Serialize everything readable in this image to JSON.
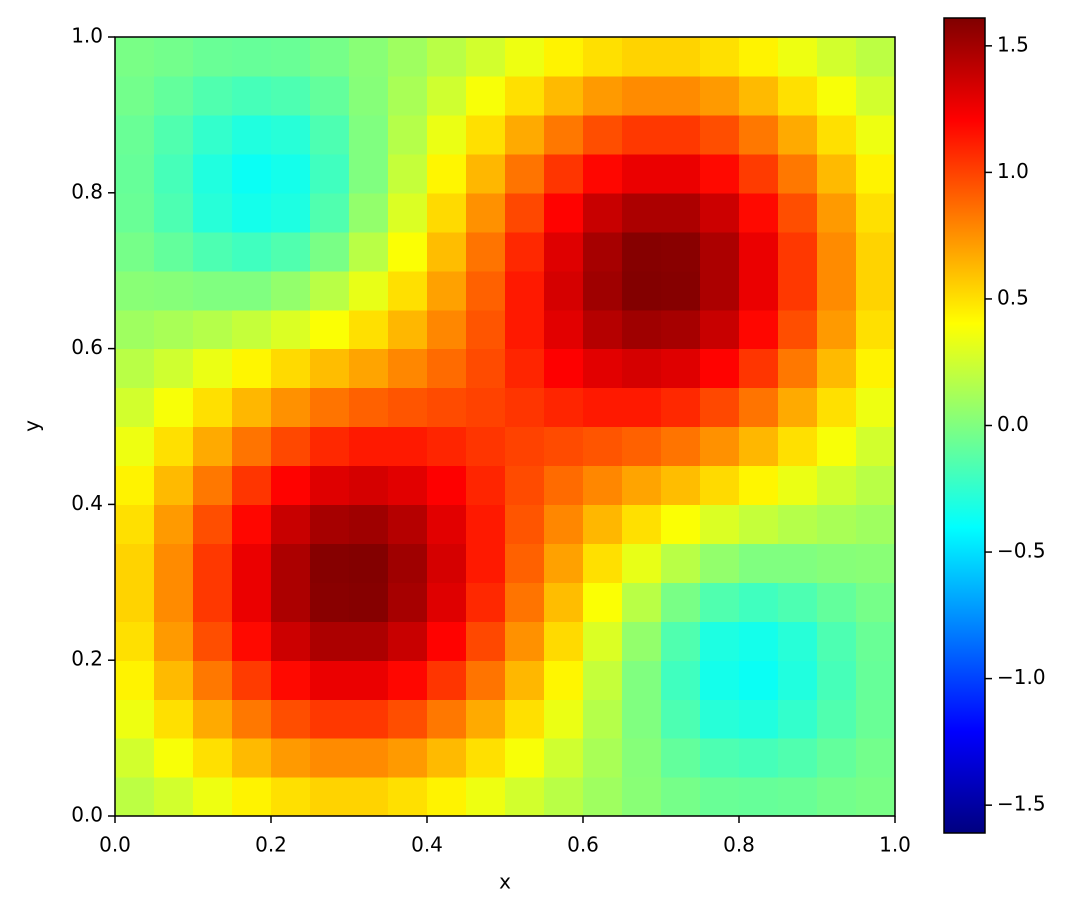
{
  "chart_data": {
    "type": "heatmap",
    "xlabel": "x",
    "ylabel": "y",
    "x": [
      0.025,
      0.075,
      0.125,
      0.175,
      0.225,
      0.275,
      0.325,
      0.375,
      0.425,
      0.475,
      0.525,
      0.575,
      0.625,
      0.675,
      0.725,
      0.775,
      0.825,
      0.875,
      0.925,
      0.975
    ],
    "y": [
      0.025,
      0.075,
      0.125,
      0.175,
      0.225,
      0.275,
      0.325,
      0.375,
      0.425,
      0.475,
      0.525,
      0.575,
      0.625,
      0.675,
      0.725,
      0.775,
      0.825,
      0.875,
      0.925,
      0.975
    ],
    "z": [
      [
        0.19,
        0.26,
        0.35,
        0.44,
        0.5,
        0.54,
        0.54,
        0.5,
        0.44,
        0.35,
        0.26,
        0.18,
        0.1,
        0.03,
        -0.03,
        -0.07,
        -0.08,
        -0.07,
        -0.04,
        -0.02
      ],
      [
        0.26,
        0.38,
        0.5,
        0.62,
        0.72,
        0.77,
        0.77,
        0.72,
        0.62,
        0.5,
        0.38,
        0.25,
        0.13,
        0.02,
        -0.09,
        -0.16,
        -0.18,
        -0.15,
        -0.09,
        -0.04
      ],
      [
        0.35,
        0.5,
        0.67,
        0.83,
        0.96,
        1.03,
        1.03,
        0.96,
        0.83,
        0.67,
        0.5,
        0.34,
        0.17,
        0,
        -0.16,
        -0.28,
        -0.3,
        -0.24,
        -0.15,
        -0.07
      ],
      [
        0.44,
        0.62,
        0.83,
        1.02,
        1.18,
        1.27,
        1.27,
        1.19,
        1.04,
        0.84,
        0.63,
        0.43,
        0.22,
        0,
        -0.2,
        -0.34,
        -0.37,
        -0.3,
        -0.18,
        -0.08
      ],
      [
        0.5,
        0.72,
        0.96,
        1.18,
        1.37,
        1.47,
        1.47,
        1.38,
        1.2,
        0.98,
        0.75,
        0.52,
        0.29,
        0.06,
        -0.15,
        -0.31,
        -0.34,
        -0.28,
        -0.16,
        -0.07
      ],
      [
        0.54,
        0.77,
        1.03,
        1.27,
        1.47,
        1.58,
        1.59,
        1.49,
        1.31,
        1.08,
        0.84,
        0.61,
        0.39,
        0.18,
        -0.02,
        -0.15,
        -0.2,
        -0.16,
        -0.09,
        -0.03
      ],
      [
        0.54,
        0.77,
        1.03,
        1.27,
        1.47,
        1.59,
        1.6,
        1.51,
        1.34,
        1.13,
        0.9,
        0.7,
        0.5,
        0.33,
        0.18,
        0.06,
        0,
        0,
        0.02,
        0.03
      ],
      [
        0.5,
        0.72,
        0.96,
        1.19,
        1.38,
        1.49,
        1.51,
        1.44,
        1.3,
        1.13,
        0.94,
        0.78,
        0.63,
        0.5,
        0.39,
        0.29,
        0.22,
        0.17,
        0.13,
        0.1
      ],
      [
        0.44,
        0.62,
        0.83,
        1.04,
        1.2,
        1.31,
        1.34,
        1.3,
        1.21,
        1.09,
        0.97,
        0.87,
        0.78,
        0.69,
        0.61,
        0.52,
        0.43,
        0.34,
        0.25,
        0.18
      ],
      [
        0.35,
        0.5,
        0.67,
        0.84,
        0.98,
        1.08,
        1.13,
        1.13,
        1.09,
        1.04,
        1.0,
        0.97,
        0.94,
        0.9,
        0.84,
        0.75,
        0.63,
        0.5,
        0.38,
        0.26
      ],
      [
        0.26,
        0.38,
        0.5,
        0.63,
        0.75,
        0.84,
        0.9,
        0.94,
        0.97,
        1.0,
        1.04,
        1.09,
        1.13,
        1.13,
        1.08,
        0.98,
        0.84,
        0.67,
        0.5,
        0.35
      ],
      [
        0.18,
        0.25,
        0.34,
        0.43,
        0.52,
        0.61,
        0.69,
        0.78,
        0.87,
        0.97,
        1.09,
        1.21,
        1.3,
        1.34,
        1.31,
        1.2,
        1.04,
        0.83,
        0.62,
        0.44
      ],
      [
        0.1,
        0.13,
        0.17,
        0.22,
        0.29,
        0.39,
        0.5,
        0.63,
        0.78,
        0.94,
        1.13,
        1.3,
        1.44,
        1.51,
        1.49,
        1.38,
        1.19,
        0.96,
        0.72,
        0.5
      ],
      [
        0.03,
        0.02,
        0,
        0,
        0.06,
        0.18,
        0.33,
        0.5,
        0.7,
        0.9,
        1.13,
        1.34,
        1.51,
        1.6,
        1.59,
        1.47,
        1.27,
        1.03,
        0.77,
        0.54
      ],
      [
        -0.03,
        -0.09,
        -0.16,
        -0.2,
        -0.15,
        -0.02,
        0.18,
        0.39,
        0.61,
        0.84,
        1.08,
        1.31,
        1.49,
        1.59,
        1.58,
        1.47,
        1.27,
        1.03,
        0.77,
        0.54
      ],
      [
        -0.07,
        -0.16,
        -0.28,
        -0.34,
        -0.31,
        -0.15,
        0.06,
        0.29,
        0.52,
        0.75,
        0.98,
        1.2,
        1.38,
        1.47,
        1.47,
        1.37,
        1.18,
        0.96,
        0.72,
        0.5
      ],
      [
        -0.08,
        -0.18,
        -0.3,
        -0.37,
        -0.34,
        -0.2,
        0,
        0.22,
        0.43,
        0.63,
        0.84,
        1.04,
        1.19,
        1.27,
        1.27,
        1.18,
        1.02,
        0.83,
        0.62,
        0.44
      ],
      [
        -0.07,
        -0.15,
        -0.24,
        -0.3,
        -0.28,
        -0.16,
        0,
        0.17,
        0.34,
        0.5,
        0.67,
        0.83,
        0.96,
        1.03,
        1.03,
        0.96,
        0.83,
        0.67,
        0.5,
        0.35
      ],
      [
        -0.04,
        -0.09,
        -0.15,
        -0.18,
        -0.16,
        -0.09,
        0.02,
        0.13,
        0.25,
        0.38,
        0.5,
        0.62,
        0.72,
        0.77,
        0.77,
        0.72,
        0.62,
        0.5,
        0.38,
        0.26
      ],
      [
        -0.02,
        -0.04,
        -0.07,
        -0.08,
        -0.07,
        -0.03,
        0.03,
        0.1,
        0.18,
        0.26,
        0.35,
        0.44,
        0.5,
        0.54,
        0.54,
        0.5,
        0.44,
        0.35,
        0.26,
        0.19
      ]
    ],
    "xlim": [
      0,
      1
    ],
    "ylim": [
      0,
      1
    ],
    "xticks": [
      {
        "value": 0,
        "label": "0.0"
      },
      0.2,
      0.4,
      0.6,
      0.8,
      {
        "value": 1,
        "label": "1.0"
      }
    ],
    "yticks": [
      {
        "value": 0,
        "label": "0.0"
      },
      0.2,
      0.4,
      0.6,
      0.8,
      {
        "value": 1,
        "label": "1.0"
      }
    ],
    "colormap": "jet",
    "clim": [
      -1.61,
      1.61
    ],
    "cticks": [
      {
        "value": -1.5,
        "label": "−1.5"
      },
      {
        "value": -1,
        "label": "−1.0"
      },
      {
        "value": -0.5,
        "label": "−0.5"
      },
      {
        "value": 0,
        "label": "0.0"
      },
      0.5,
      {
        "value": 1,
        "label": "1.0"
      },
      1.5
    ]
  }
}
